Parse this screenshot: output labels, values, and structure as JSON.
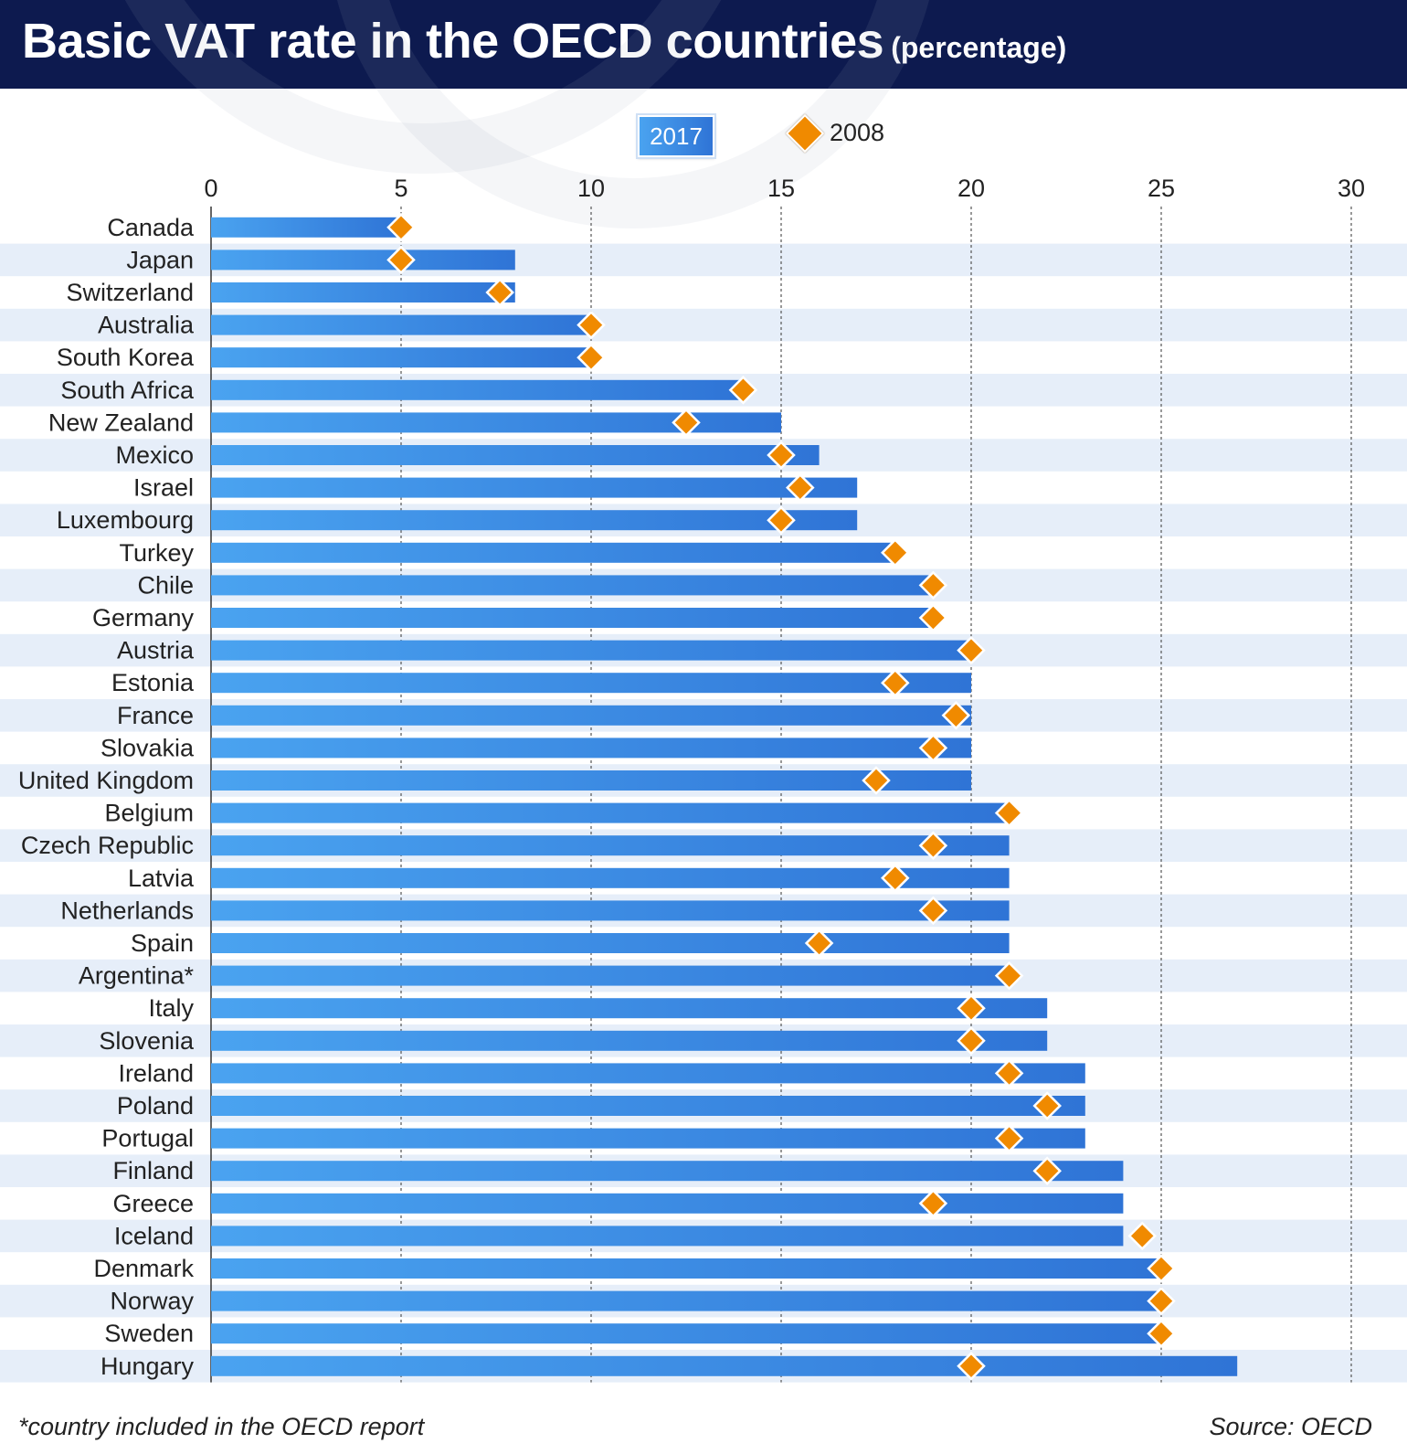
{
  "title": "Basic VAT rate in the OECD countries",
  "subtitle": "(percentage)",
  "legend": {
    "series_2017": "2017",
    "series_2008": "2008"
  },
  "footnote": "*country included in the OECD report",
  "source": "Source: OECD",
  "colors": {
    "header": "#0d1a4f",
    "bar_start": "#4aa3f0",
    "bar_end": "#2f74d6",
    "marker": "#f08a00",
    "stripe": "#e6eef9"
  },
  "chart_data": {
    "type": "bar",
    "orientation": "horizontal",
    "title": "Basic VAT rate in the OECD countries",
    "subtitle": "(percentage)",
    "xlim": [
      0,
      30
    ],
    "xticks": [
      0,
      5,
      10,
      15,
      20,
      25,
      30
    ],
    "grid": "vertical dashed",
    "legend_position": "top",
    "categories": [
      "Canada",
      "Japan",
      "Switzerland",
      "Australia",
      "South Korea",
      "South Africa",
      "New Zealand",
      "Mexico",
      "Israel",
      "Luxembourg",
      "Turkey",
      "Chile",
      "Germany",
      "Austria",
      "Estonia",
      "France",
      "Slovakia",
      "United Kingdom",
      "Belgium",
      "Czech Republic",
      "Latvia",
      "Netherlands",
      "Spain",
      "Argentina*",
      "Italy",
      "Slovenia",
      "Ireland",
      "Poland",
      "Portugal",
      "Finland",
      "Greece",
      "Iceland",
      "Denmark",
      "Norway",
      "Sweden",
      "Hungary"
    ],
    "series": [
      {
        "name": "2017",
        "type": "bar",
        "values": [
          5,
          8,
          8,
          10,
          10,
          14,
          15,
          16,
          17,
          17,
          18,
          19,
          19,
          20,
          20,
          20,
          20,
          20,
          21,
          21,
          21,
          21,
          21,
          21,
          22,
          22,
          23,
          23,
          23,
          24,
          24,
          24,
          25,
          25,
          25,
          27
        ]
      },
      {
        "name": "2008",
        "type": "marker",
        "values": [
          5,
          5,
          7.6,
          10,
          10,
          14,
          12.5,
          15,
          15.5,
          15,
          18,
          19,
          19,
          20,
          18,
          19.6,
          19,
          17.5,
          21,
          19,
          18,
          19,
          16,
          21,
          20,
          20,
          21,
          22,
          21,
          22,
          19,
          24.5,
          25,
          25,
          25,
          20
        ]
      }
    ]
  }
}
